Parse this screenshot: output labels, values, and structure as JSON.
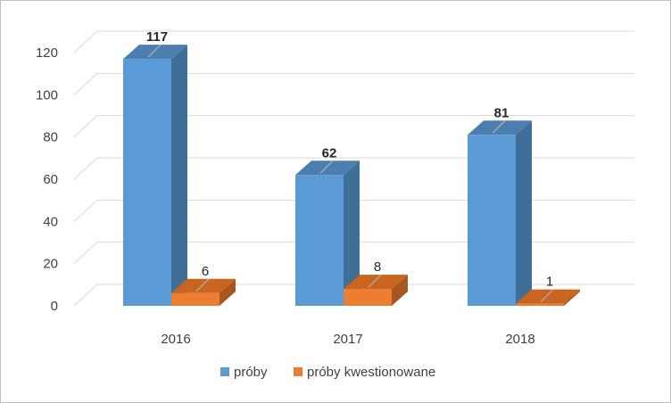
{
  "chart_data": {
    "type": "bar",
    "style": "3d-clustered-column",
    "categories": [
      "2016",
      "2017",
      "2018"
    ],
    "series": [
      {
        "name": "próby",
        "values": [
          117,
          62,
          81
        ],
        "color": "#5b9bd5",
        "side_color": "#3f6e99",
        "top_color": "#4a7fb0"
      },
      {
        "name": "próby kwestionowane",
        "values": [
          6,
          8,
          1
        ],
        "color": "#ed7d31",
        "side_color": "#a8561f",
        "top_color": "#c9651f"
      }
    ],
    "yticks": [
      "0",
      "20",
      "40",
      "60",
      "80",
      "100",
      "120"
    ],
    "ylim": [
      0,
      120
    ],
    "grid": true,
    "legend_position": "bottom",
    "title": "",
    "xlabel": "",
    "ylabel": ""
  }
}
